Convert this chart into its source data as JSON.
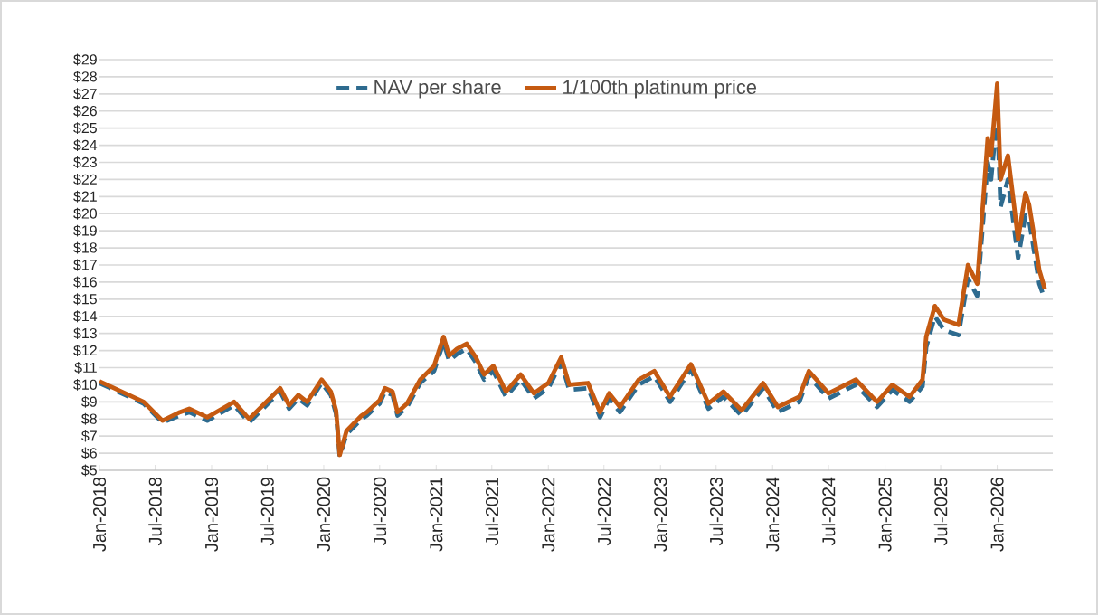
{
  "chart_data": {
    "type": "line",
    "legend": "top",
    "grid": "y",
    "line_style": "solid",
    "marker": "none",
    "x": [
      "2018-01-01",
      "2018-05-25",
      "2018-07-25",
      "2018-09-20",
      "2018-10-20",
      "2018-12-18",
      "2019-03-15",
      "2019-05-03",
      "2019-08-12",
      "2019-09-10",
      "2019-10-10",
      "2019-11-08",
      "2019-12-25",
      "2020-01-24",
      "2020-02-10",
      "2020-02-22",
      "2020-03-15",
      "2020-05-03",
      "2020-05-20",
      "2020-07-01",
      "2020-07-18",
      "2020-08-12",
      "2020-08-28",
      "2020-09-28",
      "2020-11-10",
      "2020-12-25",
      "2021-01-25",
      "2021-02-12",
      "2021-03-10",
      "2021-04-10",
      "2021-05-10",
      "2021-06-06",
      "2021-07-06",
      "2021-08-16",
      "2021-10-03",
      "2021-11-15",
      "2022-01-01",
      "2022-02-12",
      "2022-03-10",
      "2022-05-10",
      "2022-06-18",
      "2022-07-18",
      "2022-08-22",
      "2022-10-22",
      "2022-12-12",
      "2023-02-01",
      "2023-04-10",
      "2023-06-06",
      "2023-07-25",
      "2023-09-22",
      "2023-12-01",
      "2024-01-18",
      "2024-03-28",
      "2024-04-28",
      "2024-07-01",
      "2024-09-28",
      "2024-12-06",
      "2025-01-25",
      "2025-03-22",
      "2025-05-03",
      "2025-05-15",
      "2025-06-12",
      "2025-07-12",
      "2025-08-28",
      "2025-09-28",
      "2025-10-28",
      "2025-12-01",
      "2025-12-12",
      "2026-01-01",
      "2026-01-12",
      "2026-02-05",
      "2026-02-22",
      "2026-03-10",
      "2026-04-03",
      "2026-04-15",
      "2026-05-03",
      "2026-05-18",
      "2026-06-05"
    ],
    "series": [
      {
        "name": "NAV per share",
        "color": "#2e6b8f",
        "line_style": "dashed",
        "values": [
          10.1,
          8.9,
          7.8,
          8.2,
          8.4,
          7.9,
          8.8,
          7.8,
          9.6,
          8.6,
          9.2,
          8.8,
          10.1,
          9.4,
          8.3,
          5.8,
          7.1,
          8.0,
          8.2,
          8.9,
          9.6,
          9.4,
          8.2,
          8.7,
          10.1,
          10.8,
          12.5,
          11.4,
          11.8,
          12.1,
          11.3,
          10.3,
          10.8,
          9.3,
          10.3,
          9.2,
          9.8,
          11.3,
          9.7,
          9.8,
          8.1,
          9.2,
          8.4,
          10.0,
          10.5,
          9.0,
          10.9,
          8.6,
          9.3,
          8.2,
          9.8,
          8.4,
          9.0,
          10.5,
          9.2,
          10.0,
          8.7,
          9.7,
          9.0,
          9.9,
          12.2,
          14.0,
          13.2,
          12.9,
          16.2,
          15.2,
          23.0,
          22.0,
          25.8,
          20.4,
          22.0,
          19.6,
          17.4,
          19.9,
          19.6,
          17.6,
          15.9,
          15.0
        ]
      },
      {
        "name": "1/100th platinum price",
        "color": "#c55a11",
        "values": [
          10.2,
          9.0,
          7.9,
          8.4,
          8.6,
          8.1,
          9.0,
          8.0,
          9.8,
          8.8,
          9.4,
          9.0,
          10.3,
          9.6,
          8.5,
          5.9,
          7.3,
          8.2,
          8.4,
          9.1,
          9.8,
          9.6,
          8.4,
          8.9,
          10.3,
          11.1,
          12.8,
          11.7,
          12.1,
          12.4,
          11.6,
          10.6,
          11.1,
          9.6,
          10.6,
          9.5,
          10.1,
          11.6,
          10.0,
          10.1,
          8.4,
          9.5,
          8.7,
          10.3,
          10.8,
          9.3,
          11.2,
          8.9,
          9.6,
          8.5,
          10.1,
          8.7,
          9.3,
          10.8,
          9.5,
          10.3,
          9.0,
          10.0,
          9.3,
          10.3,
          12.8,
          14.6,
          13.8,
          13.5,
          17.0,
          15.9,
          24.4,
          23.4,
          27.6,
          22.0,
          23.4,
          20.9,
          18.5,
          21.2,
          20.5,
          18.5,
          16.7,
          15.6
        ]
      }
    ],
    "xlim": [
      "2018-01-01",
      "2026-07-01"
    ],
    "xticks": [
      {
        "value": "2018-01-01",
        "label": "Jan-2018"
      },
      {
        "value": "2018-07-01",
        "label": "Jul-2018"
      },
      {
        "value": "2019-01-01",
        "label": "Jan-2019"
      },
      {
        "value": "2019-07-01",
        "label": "Jul-2019"
      },
      {
        "value": "2020-01-01",
        "label": "Jan-2020"
      },
      {
        "value": "2020-07-01",
        "label": "Jul-2020"
      },
      {
        "value": "2021-01-01",
        "label": "Jan-2021"
      },
      {
        "value": "2021-07-01",
        "label": "Jul-2021"
      },
      {
        "value": "2022-01-01",
        "label": "Jan-2022"
      },
      {
        "value": "2022-07-01",
        "label": "Jul-2022"
      },
      {
        "value": "2023-01-01",
        "label": "Jan-2023"
      },
      {
        "value": "2023-07-01",
        "label": "Jul-2023"
      },
      {
        "value": "2024-01-01",
        "label": "Jan-2024"
      },
      {
        "value": "2024-07-01",
        "label": "Jul-2024"
      },
      {
        "value": "2025-01-01",
        "label": "Jan-2025"
      },
      {
        "value": "2025-07-01",
        "label": "Jul-2025"
      },
      {
        "value": "2026-01-01",
        "label": "Jan-2026"
      }
    ],
    "ylim": [
      5,
      29
    ],
    "yticks": [
      {
        "value": 5,
        "label": "$5"
      },
      {
        "value": 6,
        "label": "$6"
      },
      {
        "value": 7,
        "label": "$7"
      },
      {
        "value": 8,
        "label": "$8"
      },
      {
        "value": 9,
        "label": "$9"
      },
      {
        "value": 10,
        "label": "$10"
      },
      {
        "value": 11,
        "label": "$11"
      },
      {
        "value": 12,
        "label": "$12"
      },
      {
        "value": 13,
        "label": "$13"
      },
      {
        "value": 14,
        "label": "$14"
      },
      {
        "value": 15,
        "label": "$15"
      },
      {
        "value": 16,
        "label": "$16"
      },
      {
        "value": 17,
        "label": "$17"
      },
      {
        "value": 18,
        "label": "$18"
      },
      {
        "value": 19,
        "label": "$19"
      },
      {
        "value": 20,
        "label": "$20"
      },
      {
        "value": 21,
        "label": "$21"
      },
      {
        "value": 22,
        "label": "$22"
      },
      {
        "value": 23,
        "label": "$23"
      },
      {
        "value": 24,
        "label": "$24"
      },
      {
        "value": 25,
        "label": "$25"
      },
      {
        "value": 26,
        "label": "$26"
      },
      {
        "value": 27,
        "label": "$27"
      },
      {
        "value": 28,
        "label": "$28"
      },
      {
        "value": 29,
        "label": "$29"
      }
    ]
  }
}
